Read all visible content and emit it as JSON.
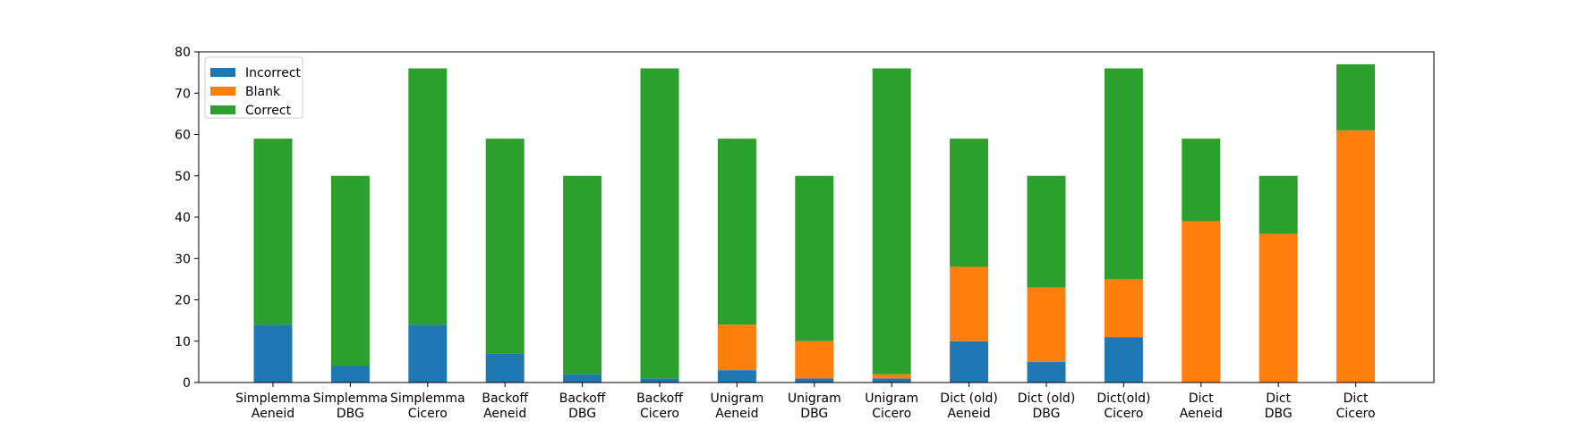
{
  "chart_data": {
    "type": "bar",
    "stacked": true,
    "categories": [
      [
        "Simplemma",
        "Aeneid"
      ],
      [
        "Simplemma",
        "DBG"
      ],
      [
        "Simplemma",
        "Cicero"
      ],
      [
        "Backoff",
        "Aeneid"
      ],
      [
        "Backoff",
        "DBG"
      ],
      [
        "Backoff",
        "Cicero"
      ],
      [
        "Unigram",
        "Aeneid"
      ],
      [
        "Unigram",
        "DBG"
      ],
      [
        "Unigram",
        "Cicero"
      ],
      [
        "Dict (old)",
        "Aeneid"
      ],
      [
        "Dict (old)",
        "DBG"
      ],
      [
        "Dict(old)",
        "Cicero"
      ],
      [
        "Dict",
        "Aeneid"
      ],
      [
        "Dict",
        "DBG"
      ],
      [
        "Dict",
        "Cicero"
      ]
    ],
    "series": [
      {
        "name": "Incorrect",
        "color": "#1f77b4",
        "values": [
          14,
          4,
          14,
          7,
          2,
          1,
          3,
          1,
          1,
          10,
          5,
          11,
          0,
          0,
          0
        ]
      },
      {
        "name": "Blank",
        "color": "#ff7f0e",
        "values": [
          0,
          0,
          0,
          0,
          0,
          0,
          11,
          9,
          1,
          18,
          18,
          14,
          39,
          36,
          61
        ]
      },
      {
        "name": "Correct",
        "color": "#2ca02c",
        "values": [
          45,
          46,
          62,
          52,
          48,
          75,
          45,
          40,
          74,
          31,
          27,
          51,
          20,
          14,
          16
        ]
      }
    ],
    "title": "",
    "xlabel": "",
    "ylabel": "",
    "ylim": [
      0,
      80
    ],
    "yticks": [
      0,
      10,
      20,
      30,
      40,
      50,
      60,
      70,
      80
    ],
    "grid": false,
    "legend": "top-left"
  }
}
